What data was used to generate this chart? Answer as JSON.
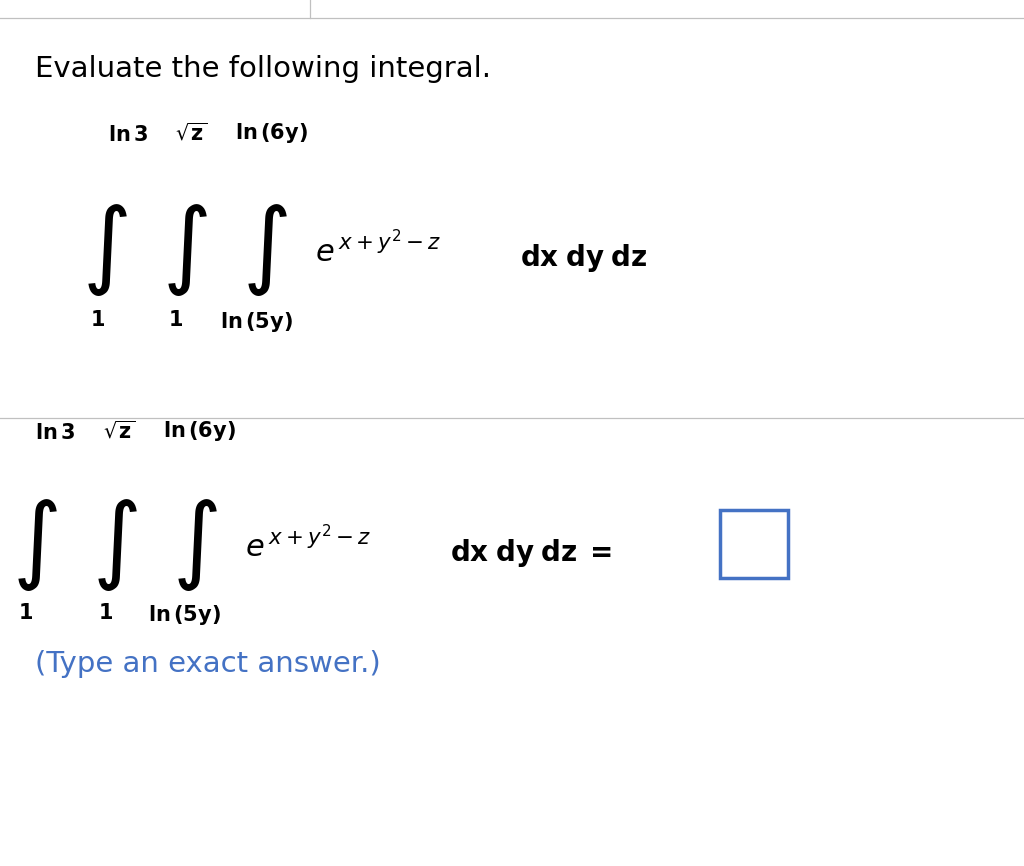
{
  "background_color": "#ffffff",
  "fig_width": 10.24,
  "fig_height": 8.66,
  "dpi": 100,
  "title_text": "Evaluate the following integral.",
  "title_fontsize": 21,
  "top_line_color": "#c0c0c0",
  "divider_color": "#c0c0c0",
  "box_color": "#4472c4",
  "type_answer_color": "#4472c4",
  "type_answer_text": "(Type an exact answer.)",
  "type_answer_fontsize": 21
}
